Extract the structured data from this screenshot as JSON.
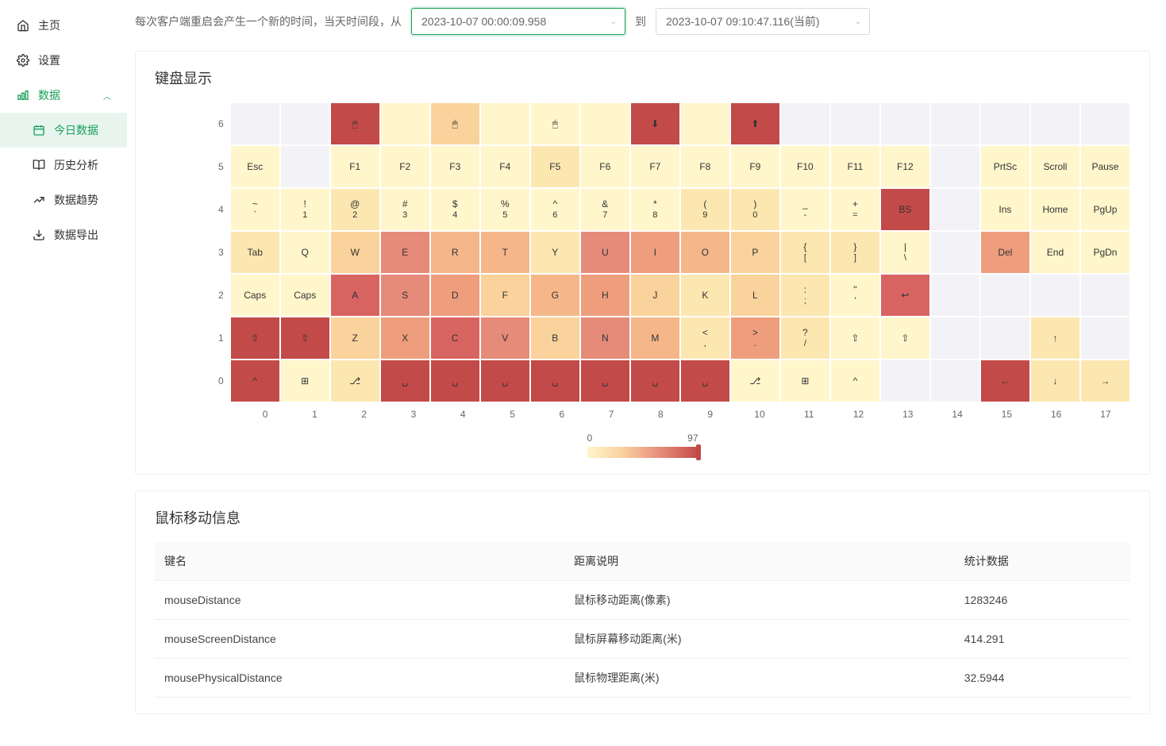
{
  "sidebar": {
    "home": "主页",
    "settings": "设置",
    "data": "数据",
    "today": "今日数据",
    "history": "历史分析",
    "trends": "数据趋势",
    "export": "数据导出"
  },
  "filter": {
    "prefix_text": "每次客户端重启会产生一个新的时间，当天时间段，从",
    "from_value": "2023-10-07 00:00:09.958",
    "to_label": "到",
    "to_value": "2023-10-07 09:10:47.116(当前)"
  },
  "keyboard_section": {
    "title": "键盘显示",
    "legend": {
      "min": "0",
      "max": "97"
    },
    "y_axis": [
      "6",
      "5",
      "4",
      "3",
      "2",
      "1",
      "0"
    ],
    "x_axis": [
      "0",
      "1",
      "2",
      "3",
      "4",
      "5",
      "6",
      "7",
      "8",
      "9",
      "10",
      "11",
      "12",
      "13",
      "14",
      "15",
      "16",
      "17"
    ],
    "colors": {
      "empty": "#f3f3f7",
      "c0": "#fff6cc",
      "c1": "#fde7b1",
      "c2": "#fad29b",
      "c3": "#f5b78a",
      "c4": "#ee9e7d",
      "c5": "#e68a7a",
      "c6": "#d86462",
      "c7": "#c24a48"
    },
    "rows": [
      [
        {
          "t": "",
          "c": "empty"
        },
        {
          "t": "",
          "c": "empty"
        },
        {
          "t": "🖱",
          "c": "c7"
        },
        {
          "t": "",
          "c": "c0"
        },
        {
          "t": "🖱",
          "c": "c2"
        },
        {
          "t": "",
          "c": "c0"
        },
        {
          "t": "🖱",
          "c": "c0"
        },
        {
          "t": "",
          "c": "c0"
        },
        {
          "t": "⬇",
          "c": "c7"
        },
        {
          "t": "",
          "c": "c0"
        },
        {
          "t": "⬆",
          "c": "c7"
        },
        {
          "t": "",
          "c": "empty"
        },
        {
          "t": "",
          "c": "empty"
        },
        {
          "t": "",
          "c": "empty"
        },
        {
          "t": "",
          "c": "empty"
        },
        {
          "t": "",
          "c": "empty"
        },
        {
          "t": "",
          "c": "empty"
        },
        {
          "t": "",
          "c": "empty"
        }
      ],
      [
        {
          "t": "Esc",
          "c": "c0"
        },
        {
          "t": "",
          "c": "empty"
        },
        {
          "t": "F1",
          "c": "c0"
        },
        {
          "t": "F2",
          "c": "c0"
        },
        {
          "t": "F3",
          "c": "c0"
        },
        {
          "t": "F4",
          "c": "c0"
        },
        {
          "t": "F5",
          "c": "c1"
        },
        {
          "t": "F6",
          "c": "c0"
        },
        {
          "t": "F7",
          "c": "c0"
        },
        {
          "t": "F8",
          "c": "c0"
        },
        {
          "t": "F9",
          "c": "c0"
        },
        {
          "t": "F10",
          "c": "c0"
        },
        {
          "t": "F11",
          "c": "c0"
        },
        {
          "t": "F12",
          "c": "c0"
        },
        {
          "t": "",
          "c": "empty"
        },
        {
          "t": "PrtSc",
          "c": "c0"
        },
        {
          "t": "Scroll",
          "c": "c0"
        },
        {
          "t": "Pause",
          "c": "c0"
        }
      ],
      [
        {
          "t": "~\n`",
          "c": "c0"
        },
        {
          "t": "!\n1",
          "c": "c0"
        },
        {
          "t": "@\n2",
          "c": "c1"
        },
        {
          "t": "#\n3",
          "c": "c0"
        },
        {
          "t": "$\n4",
          "c": "c0"
        },
        {
          "t": "%\n5",
          "c": "c0"
        },
        {
          "t": "^\n6",
          "c": "c0"
        },
        {
          "t": "&\n7",
          "c": "c0"
        },
        {
          "t": "*\n8",
          "c": "c0"
        },
        {
          "t": "(\n9",
          "c": "c1"
        },
        {
          "t": ")\n0",
          "c": "c1"
        },
        {
          "t": "_\n-",
          "c": "c0"
        },
        {
          "t": "+\n=",
          "c": "c0"
        },
        {
          "t": "BS",
          "c": "c7"
        },
        {
          "t": "",
          "c": "empty"
        },
        {
          "t": "Ins",
          "c": "c0"
        },
        {
          "t": "Home",
          "c": "c0"
        },
        {
          "t": "PgUp",
          "c": "c0"
        }
      ],
      [
        {
          "t": "Tab",
          "c": "c1"
        },
        {
          "t": "Q",
          "c": "c0"
        },
        {
          "t": "W",
          "c": "c2"
        },
        {
          "t": "E",
          "c": "c5"
        },
        {
          "t": "R",
          "c": "c3"
        },
        {
          "t": "T",
          "c": "c3"
        },
        {
          "t": "Y",
          "c": "c1"
        },
        {
          "t": "U",
          "c": "c5"
        },
        {
          "t": "I",
          "c": "c4"
        },
        {
          "t": "O",
          "c": "c3"
        },
        {
          "t": "P",
          "c": "c2"
        },
        {
          "t": "{\n[",
          "c": "c1"
        },
        {
          "t": "}\n]",
          "c": "c1"
        },
        {
          "t": "|\n\\",
          "c": "c0"
        },
        {
          "t": "",
          "c": "empty"
        },
        {
          "t": "Del",
          "c": "c4"
        },
        {
          "t": "End",
          "c": "c0"
        },
        {
          "t": "PgDn",
          "c": "c0"
        }
      ],
      [
        {
          "t": "Caps",
          "c": "c0"
        },
        {
          "t": "Caps",
          "c": "c0"
        },
        {
          "t": "A",
          "c": "c6"
        },
        {
          "t": "S",
          "c": "c5"
        },
        {
          "t": "D",
          "c": "c4"
        },
        {
          "t": "F",
          "c": "c2"
        },
        {
          "t": "G",
          "c": "c3"
        },
        {
          "t": "H",
          "c": "c4"
        },
        {
          "t": "J",
          "c": "c2"
        },
        {
          "t": "K",
          "c": "c1"
        },
        {
          "t": "L",
          "c": "c2"
        },
        {
          "t": ":\n;",
          "c": "c1"
        },
        {
          "t": "\"\n'",
          "c": "c0"
        },
        {
          "t": "↩",
          "c": "c6"
        },
        {
          "t": "",
          "c": "empty"
        },
        {
          "t": "",
          "c": "empty"
        },
        {
          "t": "",
          "c": "empty"
        },
        {
          "t": "",
          "c": "empty"
        }
      ],
      [
        {
          "t": "⇧",
          "c": "c7"
        },
        {
          "t": "⇧",
          "c": "c7"
        },
        {
          "t": "Z",
          "c": "c2"
        },
        {
          "t": "X",
          "c": "c4"
        },
        {
          "t": "C",
          "c": "c6"
        },
        {
          "t": "V",
          "c": "c5"
        },
        {
          "t": "B",
          "c": "c2"
        },
        {
          "t": "N",
          "c": "c5"
        },
        {
          "t": "M",
          "c": "c3"
        },
        {
          "t": "<\n,",
          "c": "c1"
        },
        {
          "t": ">\n.",
          "c": "c4"
        },
        {
          "t": "?\n/",
          "c": "c1"
        },
        {
          "t": "⇧",
          "c": "c0"
        },
        {
          "t": "⇧",
          "c": "c0"
        },
        {
          "t": "",
          "c": "empty"
        },
        {
          "t": "",
          "c": "empty"
        },
        {
          "t": "↑",
          "c": "c1"
        },
        {
          "t": "",
          "c": "empty"
        }
      ],
      [
        {
          "t": "^",
          "c": "c7"
        },
        {
          "t": "⊞",
          "c": "c0"
        },
        {
          "t": "⎇",
          "c": "c1"
        },
        {
          "t": "␣",
          "c": "c7"
        },
        {
          "t": "␣",
          "c": "c7"
        },
        {
          "t": "␣",
          "c": "c7"
        },
        {
          "t": "␣",
          "c": "c7"
        },
        {
          "t": "␣",
          "c": "c7"
        },
        {
          "t": "␣",
          "c": "c7"
        },
        {
          "t": "␣",
          "c": "c7"
        },
        {
          "t": "⎇",
          "c": "c0"
        },
        {
          "t": "⊞",
          "c": "c0"
        },
        {
          "t": "^",
          "c": "c0"
        },
        {
          "t": "",
          "c": "empty"
        },
        {
          "t": "",
          "c": "empty"
        },
        {
          "t": "←",
          "c": "c7"
        },
        {
          "t": "↓",
          "c": "c1"
        },
        {
          "t": "→",
          "c": "c1"
        }
      ]
    ]
  },
  "mouse_section": {
    "title": "鼠标移动信息",
    "columns": [
      "键名",
      "距离说明",
      "统计数据"
    ],
    "rows": [
      [
        "mouseDistance",
        "鼠标移动距离(像素)",
        "1283246"
      ],
      [
        "mouseScreenDistance",
        "鼠标屏幕移动距离(米)",
        "414.291"
      ],
      [
        "mousePhysicalDistance",
        "鼠标物理距离(米)",
        "32.5944"
      ]
    ]
  }
}
